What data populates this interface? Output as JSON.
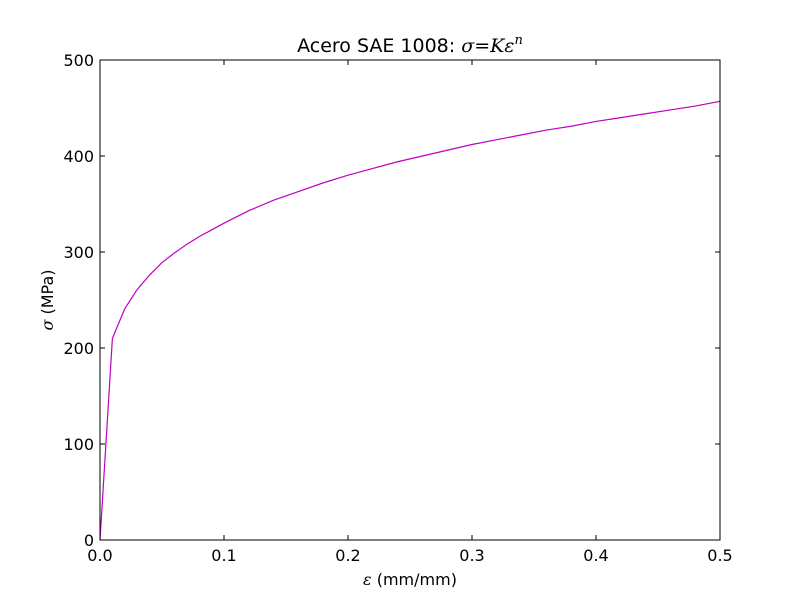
{
  "chart_data": {
    "type": "line",
    "title": {
      "prefix": "Acero SAE 1008: ",
      "formula": "σ=Kε",
      "formula_sup": "n"
    },
    "xlabel": {
      "symbol": "ε",
      "unit": " (mm/mm)"
    },
    "ylabel": {
      "symbol": "σ",
      "unit": " (MPa)"
    },
    "xlim": [
      0.0,
      0.5
    ],
    "ylim": [
      0,
      500
    ],
    "xticks": [
      0.0,
      0.1,
      0.2,
      0.3,
      0.4,
      0.5
    ],
    "xtick_labels": [
      "0.0",
      "0.1",
      "0.2",
      "0.3",
      "0.4",
      "0.5"
    ],
    "yticks": [
      0,
      100,
      200,
      300,
      400,
      500
    ],
    "ytick_labels": [
      "0",
      "100",
      "200",
      "300",
      "400",
      "500"
    ],
    "grid": false,
    "series": [
      {
        "color": "#bf00bf",
        "x": [
          0.0,
          0.01,
          0.02,
          0.03,
          0.04,
          0.05,
          0.06,
          0.07,
          0.08,
          0.09,
          0.1,
          0.12,
          0.14,
          0.16,
          0.18,
          0.2,
          0.22,
          0.24,
          0.26,
          0.28,
          0.3,
          0.32,
          0.34,
          0.36,
          0.38,
          0.4,
          0.42,
          0.44,
          0.46,
          0.48,
          0.5
        ],
        "y": [
          0,
          210,
          241,
          261,
          276,
          289,
          299,
          308,
          316,
          323,
          330,
          343,
          354,
          363,
          372,
          380,
          387,
          394,
          400,
          406,
          412,
          417,
          422,
          427,
          431,
          436,
          440,
          444,
          448,
          452,
          457
        ]
      }
    ]
  }
}
